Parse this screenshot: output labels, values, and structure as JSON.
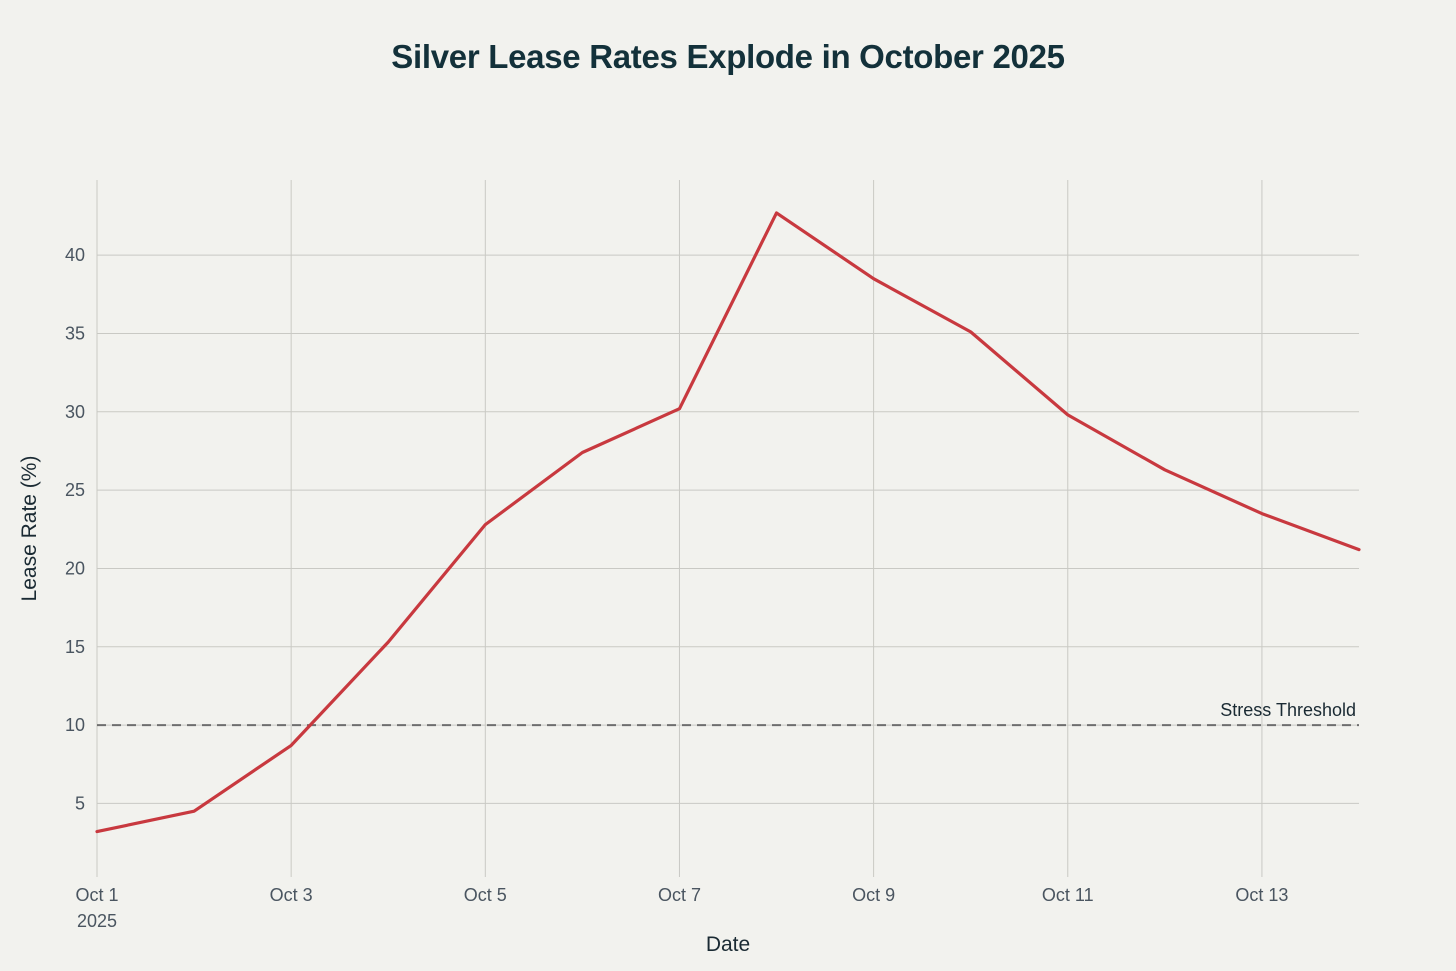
{
  "chart_data": {
    "type": "line",
    "title": "Silver Lease Rates Explode in October 2025",
    "xlabel": "Date",
    "ylabel": "Lease Rate (%)",
    "x": [
      "Oct 1",
      "Oct 2",
      "Oct 3",
      "Oct 4",
      "Oct 5",
      "Oct 6",
      "Oct 7",
      "Oct 8",
      "Oct 9",
      "Oct 10",
      "Oct 11",
      "Oct 12",
      "Oct 13",
      "Oct 14"
    ],
    "x_index_range": [
      0,
      13
    ],
    "x_ticks": [
      {
        "index": 0,
        "label": "Oct 1",
        "sublabel": "2025"
      },
      {
        "index": 2,
        "label": "Oct 3",
        "sublabel": ""
      },
      {
        "index": 4,
        "label": "Oct 5",
        "sublabel": ""
      },
      {
        "index": 6,
        "label": "Oct 7",
        "sublabel": ""
      },
      {
        "index": 8,
        "label": "Oct 9",
        "sublabel": ""
      },
      {
        "index": 10,
        "label": "Oct 11",
        "sublabel": ""
      },
      {
        "index": 12,
        "label": "Oct 13",
        "sublabel": ""
      }
    ],
    "ylim": [
      0.3,
      44.8
    ],
    "y_ticks": [
      5,
      10,
      15,
      20,
      25,
      30,
      35,
      40
    ],
    "grid": true,
    "series": [
      {
        "name": "Lease Rate",
        "color": "#c8393f",
        "values": [
          3.2,
          4.5,
          8.7,
          15.3,
          22.8,
          27.4,
          30.2,
          42.7,
          38.5,
          35.1,
          29.8,
          26.3,
          23.5,
          21.2
        ]
      }
    ],
    "reference_line": {
      "value": 10,
      "label": "Stress Threshold",
      "style": "dashed",
      "color": "#6e6e6e"
    }
  }
}
